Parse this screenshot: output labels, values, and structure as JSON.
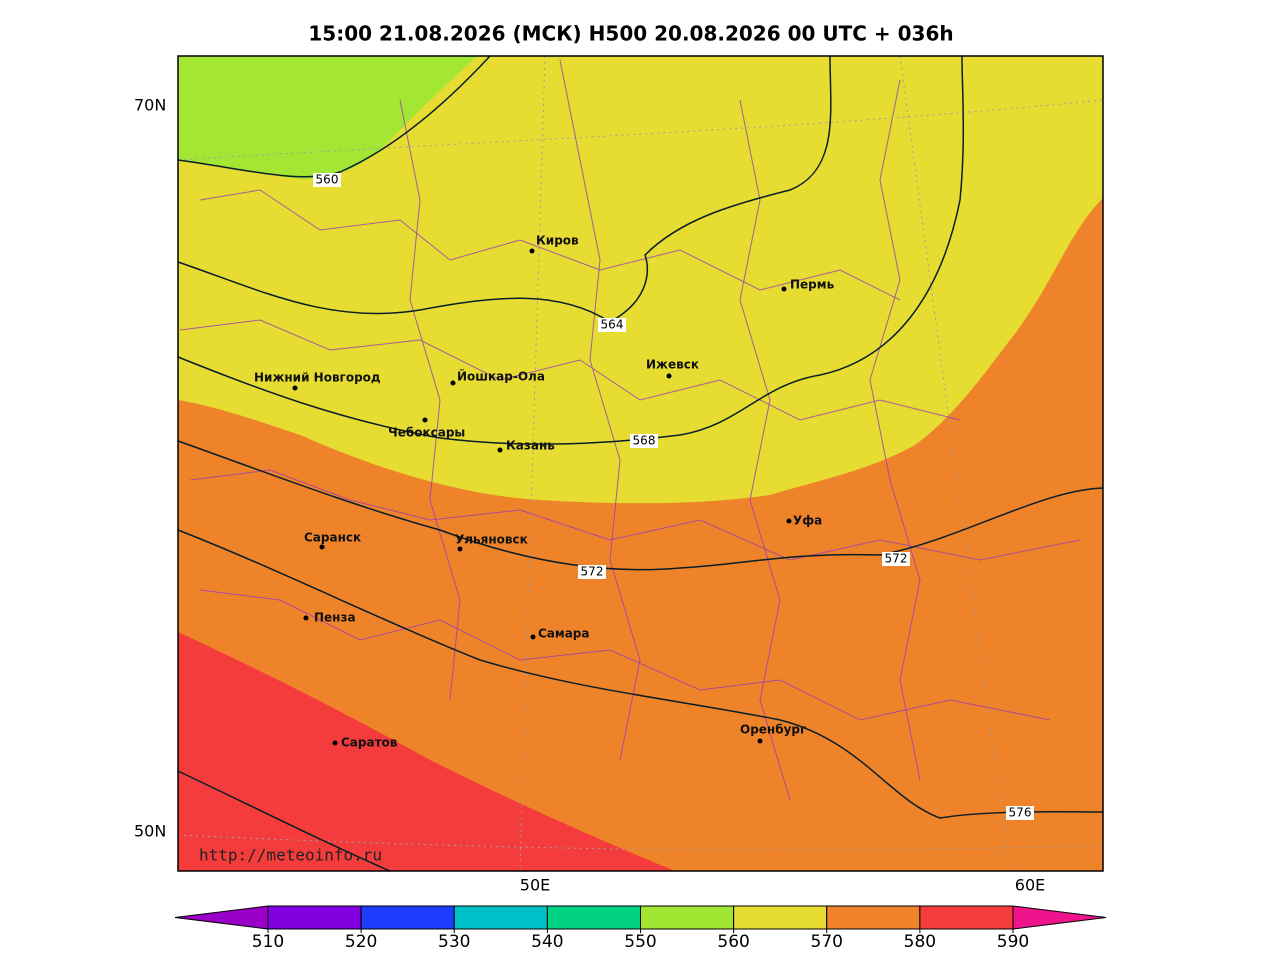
{
  "title": "15:00 21.08.2026 (МСК) H500  20.08.2026 00 UTC + 036h",
  "lat_labels": [
    "70N",
    "50N"
  ],
  "lon_labels": [
    "50E",
    "60E"
  ],
  "cities": [
    "Киров",
    "Пермь",
    "Нижний Новгород",
    "Йошкар-Ола",
    "Ижевск",
    "Чебоксары",
    "Казань",
    "Уфа",
    "Саранск",
    "Ульяновск",
    "Пенза",
    "Самара",
    "Оренбург",
    "Саратов"
  ],
  "contour_labels": [
    "560",
    "564",
    "568",
    "572",
    "572",
    "576"
  ],
  "url": "http://meteoinfo.ru",
  "colorbar": {
    "ticks": [
      510,
      520,
      530,
      540,
      550,
      560,
      570,
      580,
      590
    ],
    "colors": [
      "#9a00c8",
      "#8200e0",
      "#1e3cff",
      "#00c0c8",
      "#00d282",
      "#a0e632",
      "#e6dc32",
      "#f0822a",
      "#f53c3c",
      "#f0148c"
    ]
  }
}
